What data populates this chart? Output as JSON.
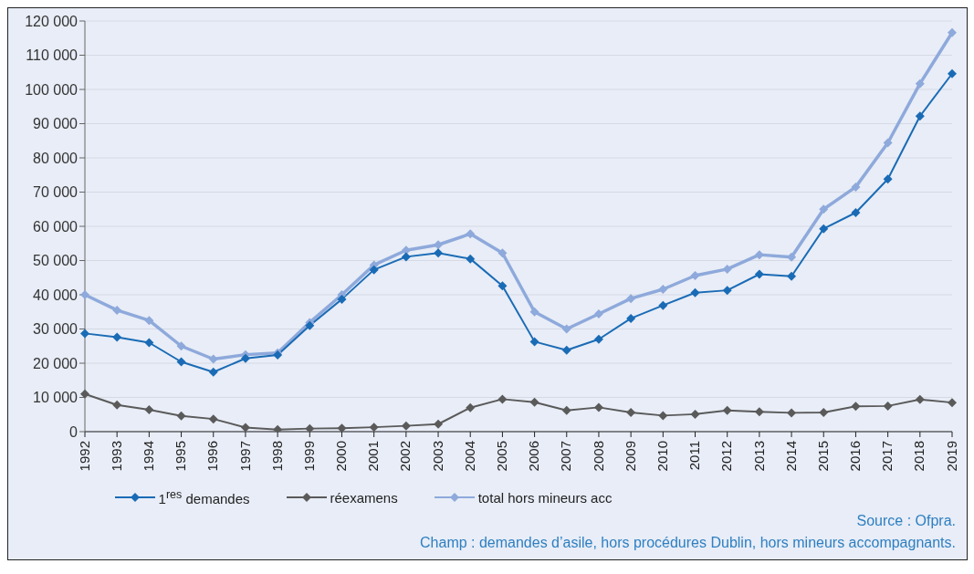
{
  "chart_data": {
    "type": "line",
    "categories": [
      "1992",
      "1993",
      "1994",
      "1995",
      "1996",
      "1997",
      "1998",
      "1999",
      "2000",
      "2001",
      "2002",
      "2003",
      "2004",
      "2005",
      "2006",
      "2007",
      "2008",
      "2009",
      "2010",
      "2011",
      "2012",
      "2013",
      "2014",
      "2015",
      "2016",
      "2017",
      "2018",
      "2019"
    ],
    "series": [
      {
        "name": "1$^{res}$ demandes",
        "color": "#1a6bb5",
        "values": [
          28700,
          27600,
          26000,
          20400,
          17400,
          21400,
          22400,
          31000,
          38700,
          47300,
          51100,
          52200,
          50500,
          42600,
          26300,
          23800,
          27000,
          33100,
          36900,
          40600,
          41300,
          46000,
          45400,
          59300,
          64000,
          73800,
          92200,
          104600
        ]
      },
      {
        "name": "réexamens",
        "color": "#5a5a5a",
        "values": [
          11000,
          7800,
          6400,
          4600,
          3700,
          1200,
          600,
          900,
          1000,
          1300,
          1700,
          2200,
          7000,
          9500,
          8600,
          6200,
          7100,
          5600,
          4700,
          5100,
          6200,
          5800,
          5500,
          5600,
          7400,
          7500,
          9400,
          8500
        ]
      },
      {
        "name": "total hors mineurs acc",
        "color": "#8ea9db",
        "values": [
          40000,
          35500,
          32500,
          25000,
          21200,
          22500,
          23000,
          31900,
          40000,
          48700,
          53000,
          54600,
          57800,
          52200,
          35000,
          30000,
          34400,
          38900,
          41600,
          45600,
          47500,
          51700,
          51000,
          65000,
          71500,
          84400,
          101700,
          116600
        ]
      }
    ],
    "ylim": [
      0,
      120000
    ],
    "yticks": [
      {
        "value": 0,
        "label": "0"
      },
      {
        "value": 10000,
        "label": "10 000"
      },
      {
        "value": 20000,
        "label": "20 000"
      },
      {
        "value": 30000,
        "label": "30 000"
      },
      {
        "value": 40000,
        "label": "40 000"
      },
      {
        "value": 50000,
        "label": "50 000"
      },
      {
        "value": 60000,
        "label": "60 000"
      },
      {
        "value": 70000,
        "label": "70 000"
      },
      {
        "value": 80000,
        "label": "80 000"
      },
      {
        "value": 90000,
        "label": "90 000"
      },
      {
        "value": 100000,
        "label": "100 000"
      },
      {
        "value": 110000,
        "label": "110 000"
      },
      {
        "value": 120000,
        "label": "120 000"
      }
    ],
    "grid": "y",
    "legend": "bottom",
    "marker": "diamond",
    "line_style": "solid",
    "annotations": [
      "Source : Ofpra.",
      "Champ : demandes d’asile, hors procédures Dublin, hors mineurs accompagnants."
    ]
  }
}
